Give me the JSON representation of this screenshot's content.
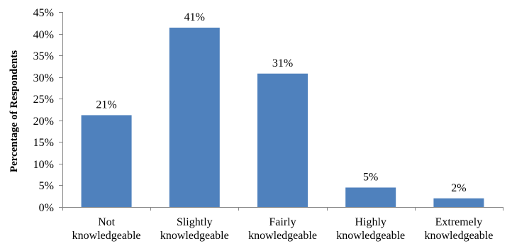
{
  "chart_data": {
    "type": "bar",
    "title": "",
    "xlabel": "",
    "ylabel": "Percentage of Respondents",
    "ylim": [
      0,
      45
    ],
    "yticks": [
      0,
      5,
      10,
      15,
      20,
      25,
      30,
      35,
      40,
      45
    ],
    "ytick_suffix": "%",
    "grid": false,
    "legend": "none",
    "bar_color": "#4F81BD",
    "categories": [
      [
        "Not",
        "knowledgeable"
      ],
      [
        "Slightly",
        "knowledgeable"
      ],
      [
        "Fairly",
        "knowledgeable"
      ],
      [
        "Highly",
        "knowledgeable"
      ],
      [
        "Extremely",
        "knowledgeable"
      ]
    ],
    "values": [
      21.2,
      41.4,
      30.8,
      4.5,
      2.0
    ],
    "data_labels": [
      "21%",
      "41%",
      "31%",
      "5%",
      "2%"
    ]
  }
}
